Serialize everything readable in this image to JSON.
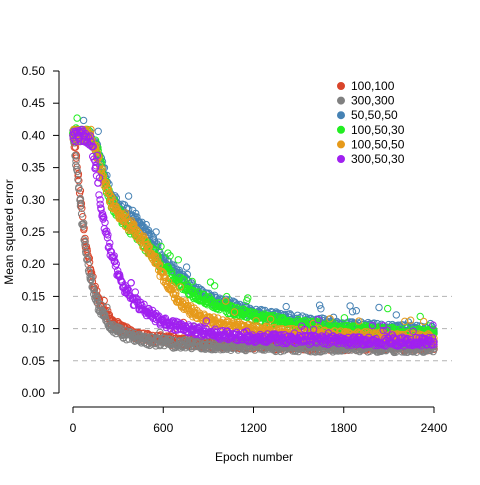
{
  "chart_data": {
    "type": "scatter",
    "title": "",
    "xlabel": "Epoch number",
    "ylabel": "Mean squared error",
    "xlim": [
      0,
      2400
    ],
    "ylim": [
      0,
      0.5
    ],
    "xticks": [
      "0",
      "600",
      "1200",
      "1800",
      "2400"
    ],
    "yticks": [
      "0.00",
      "0.05",
      "0.10",
      "0.15",
      "0.20",
      "0.25",
      "0.30",
      "0.35",
      "0.40",
      "0.45",
      "0.50"
    ],
    "reference_lines": [
      0.05,
      0.1,
      0.15
    ],
    "grid": false,
    "legend_position": "top-right",
    "marker": "open-circle",
    "series": [
      {
        "name": "100,100",
        "color": "#d9452b",
        "x": [
          0,
          20,
          50,
          80,
          120,
          160,
          200,
          250,
          300,
          400,
          500,
          700,
          900,
          1200,
          1500,
          1800,
          2100,
          2400
        ],
        "y": [
          0.4,
          0.37,
          0.3,
          0.24,
          0.185,
          0.15,
          0.13,
          0.115,
          0.103,
          0.092,
          0.086,
          0.08,
          0.077,
          0.075,
          0.074,
          0.073,
          0.073,
          0.072
        ]
      },
      {
        "name": "300,300",
        "color": "#808080",
        "x": [
          0,
          20,
          50,
          80,
          120,
          160,
          200,
          250,
          300,
          400,
          500,
          700,
          900,
          1200,
          1500,
          1800,
          2100,
          2400
        ],
        "y": [
          0.4,
          0.36,
          0.29,
          0.23,
          0.175,
          0.14,
          0.12,
          0.105,
          0.095,
          0.086,
          0.081,
          0.076,
          0.074,
          0.072,
          0.071,
          0.07,
          0.07,
          0.069
        ]
      },
      {
        "name": "50,50,50",
        "color": "#4682b4",
        "x": [
          0,
          100,
          150,
          200,
          250,
          300,
          400,
          500,
          600,
          700,
          800,
          900,
          1000,
          1200,
          1500,
          1800,
          2100,
          2400
        ],
        "y": [
          0.4,
          0.4,
          0.39,
          0.35,
          0.31,
          0.29,
          0.275,
          0.245,
          0.21,
          0.185,
          0.16,
          0.148,
          0.14,
          0.125,
          0.113,
          0.105,
          0.1,
          0.096
        ]
      },
      {
        "name": "100,50,30",
        "color": "#22ee22",
        "x": [
          0,
          100,
          150,
          200,
          250,
          300,
          400,
          500,
          600,
          700,
          800,
          900,
          1000,
          1200,
          1500,
          1800,
          2100,
          2400
        ],
        "y": [
          0.4,
          0.4,
          0.385,
          0.34,
          0.3,
          0.28,
          0.25,
          0.225,
          0.195,
          0.175,
          0.155,
          0.142,
          0.132,
          0.118,
          0.107,
          0.1,
          0.095,
          0.092
        ]
      },
      {
        "name": "100,50,50",
        "color": "#e69a1a",
        "x": [
          0,
          100,
          150,
          200,
          250,
          300,
          400,
          500,
          600,
          700,
          800,
          900,
          1000,
          1200,
          1500,
          1800,
          2100,
          2400
        ],
        "y": [
          0.4,
          0.4,
          0.38,
          0.33,
          0.3,
          0.28,
          0.255,
          0.225,
          0.18,
          0.145,
          0.125,
          0.113,
          0.107,
          0.098,
          0.092,
          0.089,
          0.087,
          0.085
        ]
      },
      {
        "name": "300,50,30",
        "color": "#a020f0",
        "x": [
          0,
          80,
          120,
          150,
          180,
          200,
          250,
          300,
          350,
          400,
          500,
          600,
          800,
          1000,
          1200,
          1500,
          1800,
          2100,
          2400
        ],
        "y": [
          0.4,
          0.4,
          0.39,
          0.35,
          0.3,
          0.27,
          0.22,
          0.185,
          0.16,
          0.145,
          0.125,
          0.11,
          0.097,
          0.09,
          0.086,
          0.083,
          0.081,
          0.08,
          0.079
        ]
      }
    ]
  }
}
